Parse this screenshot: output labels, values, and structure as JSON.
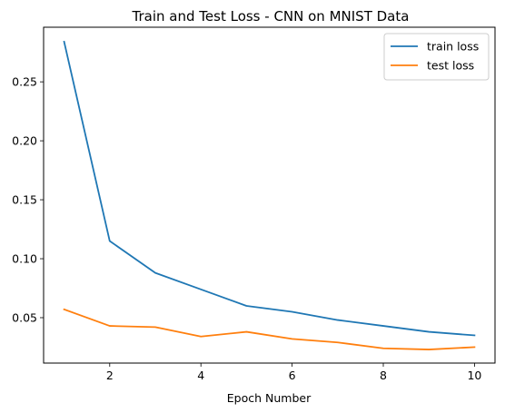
{
  "chart_data": {
    "type": "line",
    "title": "Train and Test Loss - CNN on MNIST Data",
    "xlabel": "Epoch Number",
    "ylabel": "",
    "x": [
      1,
      2,
      3,
      4,
      5,
      6,
      7,
      8,
      9,
      10
    ],
    "xlim": [
      0.55,
      10.45
    ],
    "ylim": [
      0.0115,
      0.2963
    ],
    "xticks": [
      2,
      4,
      6,
      8,
      10
    ],
    "yticks": [
      0.05,
      0.1,
      0.15,
      0.2,
      0.25
    ],
    "grid": false,
    "legend_position": "top-right",
    "series": [
      {
        "name": "train loss",
        "color": "#1f77b4",
        "values": [
          0.284,
          0.115,
          0.088,
          0.074,
          0.06,
          0.055,
          0.048,
          0.043,
          0.038,
          0.035
        ]
      },
      {
        "name": "test loss",
        "color": "#ff7f0e",
        "values": [
          0.057,
          0.043,
          0.042,
          0.034,
          0.038,
          0.032,
          0.029,
          0.024,
          0.023,
          0.025
        ]
      }
    ]
  }
}
